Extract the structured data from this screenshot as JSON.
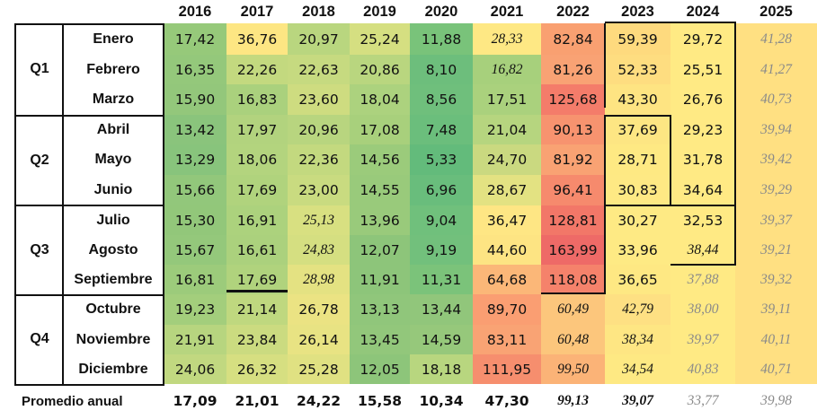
{
  "years": [
    "2016",
    "2017",
    "2018",
    "2019",
    "2020",
    "2021",
    "2022",
    "2023",
    "2024",
    "2025"
  ],
  "quarters": [
    "Q1",
    "Q2",
    "Q3",
    "Q4"
  ],
  "months": [
    "Enero",
    "Febrero",
    "Marzo",
    "Abril",
    "Mayo",
    "Junio",
    "Julio",
    "Agosto",
    "Septiembre",
    "Octubre",
    "Noviembre",
    "Diciembre"
  ],
  "rows": [
    [
      "17,42",
      "36,76",
      "20,97",
      "25,24",
      "11,88",
      "28,33",
      "82,84",
      "59,39",
      "29,72",
      "41,28"
    ],
    [
      "16,35",
      "22,26",
      "22,63",
      "20,86",
      "8,10",
      "16,82",
      "81,26",
      "52,33",
      "25,51",
      "41,27"
    ],
    [
      "15,90",
      "16,83",
      "23,60",
      "18,04",
      "8,56",
      "17,51",
      "125,68",
      "43,30",
      "26,76",
      "40,73"
    ],
    [
      "13,42",
      "17,97",
      "20,96",
      "17,08",
      "7,48",
      "21,04",
      "90,13",
      "37,69",
      "29,23",
      "39,94"
    ],
    [
      "13,29",
      "18,06",
      "22,36",
      "14,56",
      "5,33",
      "24,70",
      "81,92",
      "28,71",
      "31,78",
      "39,42"
    ],
    [
      "15,66",
      "17,69",
      "23,00",
      "14,55",
      "6,96",
      "28,67",
      "96,41",
      "30,83",
      "34,64",
      "39,29"
    ],
    [
      "15,30",
      "16,91",
      "25,13",
      "13,96",
      "9,04",
      "36,47",
      "128,81",
      "30,27",
      "32,53",
      "39,37"
    ],
    [
      "15,67",
      "16,61",
      "24,83",
      "12,07",
      "9,19",
      "44,60",
      "163,99",
      "33,96",
      "38,44",
      "39,21"
    ],
    [
      "16,81",
      "17,69",
      "28,98",
      "11,91",
      "11,31",
      "64,68",
      "118,08",
      "36,65",
      "37,88",
      "39,32"
    ],
    [
      "19,23",
      "21,14",
      "26,78",
      "13,13",
      "13,44",
      "89,70",
      "60,49",
      "42,79",
      "38,00",
      "39,11"
    ],
    [
      "21,91",
      "23,84",
      "26,14",
      "13,45",
      "14,59",
      "83,11",
      "60,48",
      "38,34",
      "39,97",
      "40,11"
    ],
    [
      "24,06",
      "26,32",
      "25,28",
      "12,05",
      "18,18",
      "111,95",
      "99,50",
      "34,54",
      "40,83",
      "40,71"
    ]
  ],
  "cell_colors": [
    [
      "#96c97a",
      "#fde683",
      "#b9d67f",
      "#d5df81",
      "#79c37a",
      "#fee884",
      "#f9a071",
      "#feda7e",
      "#ffea84",
      "#ffe082"
    ],
    [
      "#94c87b",
      "#c3d97f",
      "#c6da80",
      "#b9d67f",
      "#6dbe7c",
      "#a7d07c",
      "#f9a274",
      "#fedd80",
      "#ffea84",
      "#ffe082"
    ],
    [
      "#93c77b",
      "#aad17d",
      "#cedc80",
      "#acd27e",
      "#6fbf7c",
      "#aad17d",
      "#f47c6a",
      "#fee482",
      "#ffea84",
      "#ffe082"
    ],
    [
      "#8ac47c",
      "#b2d37e",
      "#b8d57f",
      "#a8d07c",
      "#6bbe7c",
      "#b6d57f",
      "#f7936f",
      "#fde683",
      "#ffea84",
      "#ffe082"
    ],
    [
      "#88c47c",
      "#b3d47e",
      "#c3d97f",
      "#9bcb7b",
      "#63bb7b",
      "#cad980",
      "#f9a273",
      "#fee983",
      "#ffea84",
      "#ffe082"
    ],
    [
      "#92c77b",
      "#b0d37d",
      "#c9db80",
      "#99ca7b",
      "#69bd7c",
      "#e3e282",
      "#f68a6d",
      "#fee984",
      "#ffea84",
      "#ffe082"
    ],
    [
      "#92c77a",
      "#acd27d",
      "#d8e081",
      "#99ca7b",
      "#70c07c",
      "#fee684",
      "#f27768",
      "#feea84",
      "#ffea84",
      "#ffe082"
    ],
    [
      "#94c87b",
      "#abd17d",
      "#d5df81",
      "#8dc57a",
      "#72c07c",
      "#fde483",
      "#ee6a67",
      "#feea84",
      "#ffea84",
      "#ffe082"
    ],
    [
      "#9ccb7b",
      "#b0d37d",
      "#e4e282",
      "#8dc57a",
      "#7bc37a",
      "#fbb778",
      "#f5826b",
      "#fee883",
      "#ffea84",
      "#ffe082"
    ],
    [
      "#a3ce7c",
      "#bfd87f",
      "#ebe383",
      "#90c67b",
      "#91c67b",
      "#fa9e72",
      "#fcc67c",
      "#fee083",
      "#ffea84",
      "#ffe082"
    ],
    [
      "#b7d57f",
      "#cbdb80",
      "#e8e383",
      "#92c77b",
      "#96c87b",
      "#f9a374",
      "#fcc67c",
      "#fee683",
      "#ffea84",
      "#ffe082"
    ],
    [
      "#c1d880",
      "#d6df81",
      "#e0e182",
      "#8dc57a",
      "#b8d67f",
      "#f68e6e",
      "#fbb377",
      "#fee983",
      "#ffea84",
      "#ffe082"
    ]
  ],
  "italic_cells": [
    [
      0,
      5
    ],
    [
      1,
      5
    ],
    [
      6,
      2
    ],
    [
      7,
      2
    ],
    [
      8,
      2
    ],
    [
      9,
      6
    ],
    [
      9,
      7
    ],
    [
      10,
      6
    ],
    [
      10,
      7
    ],
    [
      11,
      6
    ],
    [
      11,
      7
    ],
    [
      7,
      8
    ]
  ],
  "grey_cells": [
    [
      0,
      9
    ],
    [
      1,
      9
    ],
    [
      2,
      9
    ],
    [
      3,
      9
    ],
    [
      4,
      9
    ],
    [
      5,
      9
    ],
    [
      6,
      9
    ],
    [
      7,
      9
    ],
    [
      8,
      9
    ],
    [
      9,
      9
    ],
    [
      10,
      9
    ],
    [
      11,
      9
    ],
    [
      8,
      8
    ],
    [
      9,
      8
    ],
    [
      10,
      8
    ],
    [
      11,
      8
    ]
  ],
  "average": {
    "label": "Promedio anual",
    "values": [
      "17,09",
      "21,01",
      "24,22",
      "15,58",
      "10,34",
      "47,30",
      "99,13",
      "39,07",
      "33,77",
      "39,98"
    ],
    "italic": [
      6,
      7,
      8,
      9
    ],
    "grey": [
      8,
      9
    ]
  }
}
